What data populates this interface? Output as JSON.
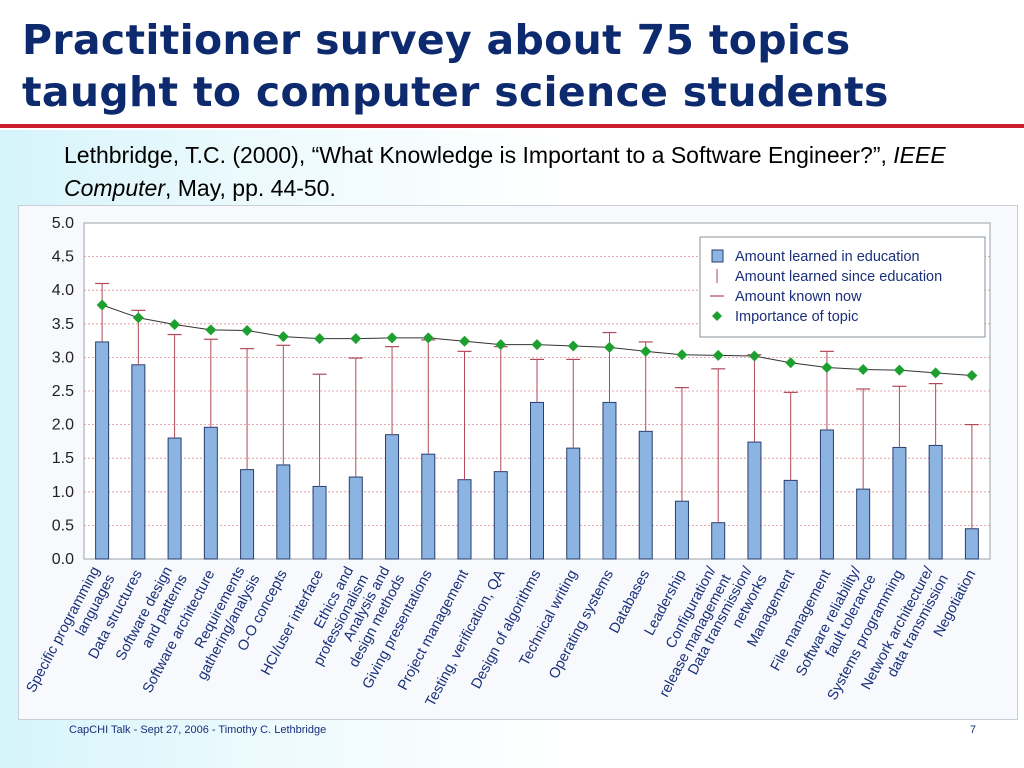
{
  "slide": {
    "title": "Practitioner survey about 75 topics taught to computer science students",
    "citation_main": "Lethbridge, T.C. (2000), “What Knowledge is Important to a Software Engineer?”,",
    "citation_journal": "IEEE Computer",
    "citation_tail": ", May, pp. 44-50.",
    "footer": "CapCHI Talk - Sept 27, 2006 - Timothy C. Lethbridge",
    "page_number": "7"
  },
  "colors": {
    "title": "#0d2a6e",
    "rule": "#cc1f2d",
    "bar_fill": "#8cb4e2",
    "bar_stroke": "#2a3e6c",
    "range_line": "#b04a5a",
    "importance": "#1ea030",
    "grid": "#e08a94"
  },
  "chart_data": {
    "type": "bar",
    "ylim": [
      0,
      5
    ],
    "yticks": [
      "0.0",
      "0.5",
      "1.0",
      "1.5",
      "2.0",
      "2.5",
      "3.0",
      "3.5",
      "4.0",
      "4.5",
      "5.0"
    ],
    "grid": true,
    "legend_position": "top-right",
    "categories": [
      [
        "Specific programming",
        "languages"
      ],
      [
        "Data structures"
      ],
      [
        "Software design",
        "and patterns"
      ],
      [
        "Software architecture"
      ],
      [
        "Requirements",
        "gathering/analysis"
      ],
      [
        "O-O concepts"
      ],
      [
        "HCI/user interface"
      ],
      [
        "Ethics and",
        "professionalism"
      ],
      [
        "Analysis and",
        "design methods"
      ],
      [
        "Giving presentations"
      ],
      [
        "Project management"
      ],
      [
        "Testing, verification, QA"
      ],
      [
        "Design of algorithms"
      ],
      [
        "Technical writing"
      ],
      [
        "Operating systems"
      ],
      [
        "Databases"
      ],
      [
        "Leadership"
      ],
      [
        "Configuration/",
        "release management"
      ],
      [
        "Data transmission/",
        "networks"
      ],
      [
        "Management"
      ],
      [
        "File management"
      ],
      [
        "Software reliability/",
        "fault tolerance"
      ],
      [
        "Systems programming"
      ],
      [
        "Network architecture/",
        "data transmission"
      ],
      [
        "Negotiation"
      ]
    ],
    "series": [
      {
        "name": "Amount learned in education",
        "kind": "bar",
        "values": [
          3.23,
          2.89,
          1.8,
          1.96,
          1.33,
          1.4,
          1.08,
          1.22,
          1.85,
          1.56,
          1.18,
          1.3,
          2.33,
          1.65,
          2.33,
          1.9,
          0.86,
          0.54,
          1.74,
          1.17,
          1.92,
          1.04,
          1.66,
          1.69,
          0.45
        ]
      },
      {
        "name": "Amount learned since education",
        "kind": "range-line",
        "values": [
          4.1,
          3.7,
          3.34,
          3.27,
          3.13,
          3.18,
          2.75,
          2.99,
          3.16,
          3.26,
          3.09,
          3.16,
          2.97,
          2.97,
          3.37,
          3.23,
          2.55,
          2.83,
          3.04,
          2.48,
          3.09,
          2.53,
          2.57,
          2.61,
          2.0
        ]
      },
      {
        "name": "Amount known now",
        "kind": "tick"
      },
      {
        "name": "Importance of topic",
        "kind": "line-diamond",
        "values": [
          3.78,
          3.59,
          3.49,
          3.41,
          3.4,
          3.31,
          3.28,
          3.28,
          3.29,
          3.29,
          3.24,
          3.19,
          3.19,
          3.17,
          3.15,
          3.09,
          3.04,
          3.03,
          3.02,
          2.92,
          2.85,
          2.82,
          2.81,
          2.77,
          2.73
        ]
      }
    ]
  }
}
